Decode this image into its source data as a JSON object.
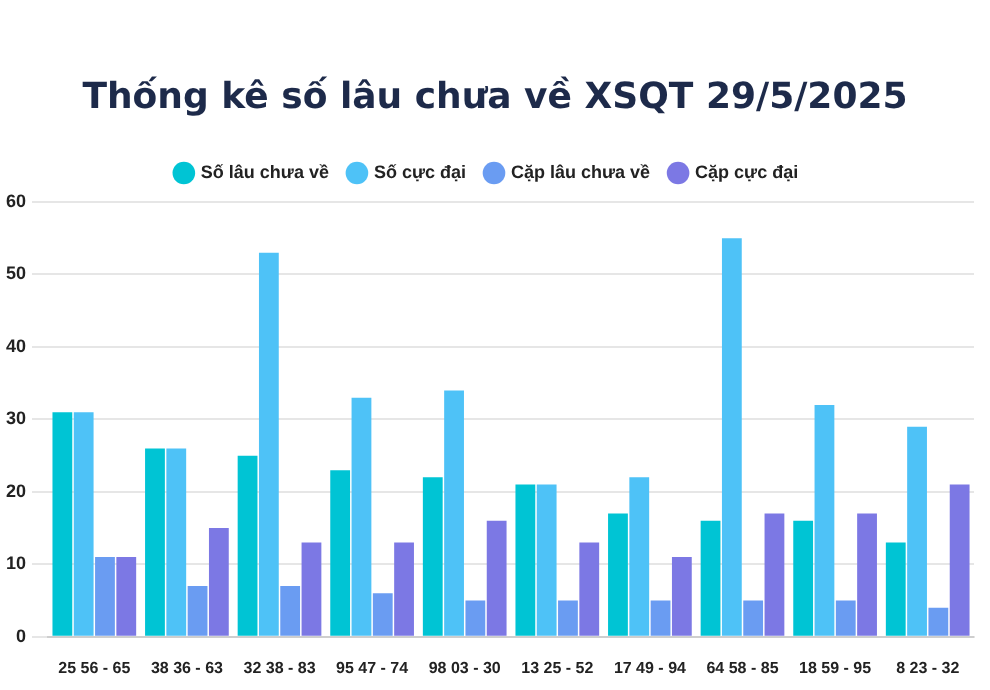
{
  "chart_data": {
    "type": "bar",
    "title": "Thống kê số lâu chưa về XSQT 29/5/2025",
    "categories": [
      "25 56 - 65",
      "38 36 - 63",
      "32 38 - 83",
      "95 47 - 74",
      "98 03 - 30",
      "13 25 - 52",
      "17 49 - 94",
      "64 58 - 85",
      "18 59 - 95",
      "8 23 - 32"
    ],
    "series": [
      {
        "name": "Số lâu chưa về",
        "color": "#00c4d4",
        "values": [
          31,
          26,
          25,
          23,
          22,
          21,
          17,
          16,
          16,
          13
        ]
      },
      {
        "name": "Số cực đại",
        "color": "#4ec2f7",
        "values": [
          31,
          26,
          53,
          33,
          34,
          21,
          22,
          55,
          32,
          29
        ]
      },
      {
        "name": "Cặp lâu chưa về",
        "color": "#6a9cf2",
        "values": [
          11,
          7,
          7,
          6,
          5,
          5,
          5,
          5,
          5,
          4
        ]
      },
      {
        "name": "Cặp cực đại",
        "color": "#7c78e4",
        "values": [
          11,
          15,
          13,
          13,
          16,
          13,
          11,
          17,
          17,
          21
        ]
      }
    ],
    "ylim": [
      0,
      60
    ],
    "yticks": [
      0,
      10,
      20,
      30,
      40,
      50,
      60
    ],
    "grid": "y",
    "legend": "top"
  }
}
